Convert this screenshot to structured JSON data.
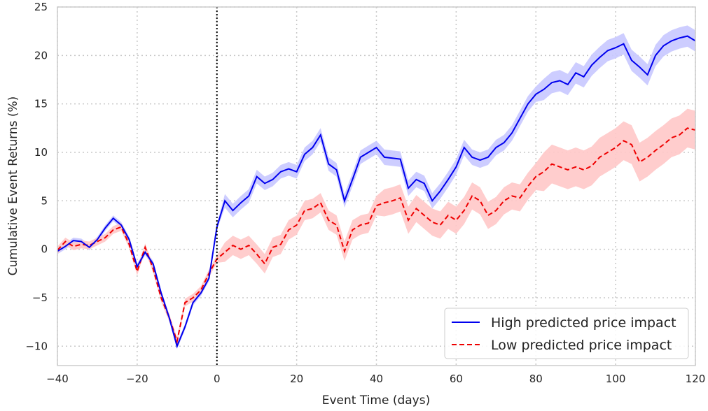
{
  "chart_data": {
    "type": "line",
    "xlabel": "Event Time (days)",
    "ylabel": "Cumulative Event Returns (%)",
    "x": [
      -40,
      -38,
      -36,
      -34,
      -32,
      -30,
      -28,
      -26,
      -24,
      -22,
      -20,
      -18,
      -16,
      -14,
      -12,
      -10,
      -8,
      -6,
      -4,
      -2,
      0,
      2,
      4,
      6,
      8,
      10,
      12,
      14,
      16,
      18,
      20,
      22,
      24,
      26,
      28,
      30,
      32,
      34,
      36,
      38,
      40,
      42,
      44,
      46,
      48,
      50,
      52,
      54,
      56,
      58,
      60,
      62,
      64,
      66,
      68,
      70,
      72,
      74,
      76,
      78,
      80,
      82,
      84,
      86,
      88,
      90,
      92,
      94,
      96,
      98,
      100,
      102,
      104,
      106,
      108,
      110,
      112,
      114,
      116,
      118,
      120
    ],
    "series": [
      {
        "name": "High predicted price impact",
        "color": "#0000ee",
        "dash": "solid",
        "band_color": "#c8c8ff",
        "values": [
          -0.2,
          0.3,
          0.9,
          0.8,
          0.2,
          1.0,
          2.2,
          3.2,
          2.5,
          1.0,
          -1.8,
          -0.3,
          -1.5,
          -4.5,
          -7.0,
          -10.0,
          -8.0,
          -5.5,
          -4.5,
          -3.0,
          2.3,
          5.0,
          4.0,
          4.8,
          5.5,
          7.5,
          6.8,
          7.2,
          8.0,
          8.3,
          8.0,
          9.8,
          10.5,
          11.8,
          8.8,
          8.2,
          5.0,
          7.2,
          9.5,
          10.0,
          10.5,
          9.5,
          9.4,
          9.3,
          6.3,
          7.2,
          6.8,
          5.0,
          6.0,
          7.2,
          8.5,
          10.5,
          9.5,
          9.2,
          9.5,
          10.5,
          11.0,
          12.0,
          13.5,
          15.0,
          16.0,
          16.5,
          17.2,
          17.4,
          17.0,
          18.2,
          17.8,
          19.0,
          19.8,
          20.5,
          20.8,
          21.2,
          19.5,
          18.8,
          18.0,
          20.0,
          21.0,
          21.5,
          21.8,
          22.0,
          21.5
        ],
        "ci": [
          0.3,
          0.3,
          0.3,
          0.3,
          0.3,
          0.3,
          0.3,
          0.3,
          0.3,
          0.3,
          0.3,
          0.3,
          0.3,
          0.3,
          0.3,
          0.3,
          0.3,
          0.3,
          0.3,
          0.3,
          0.3,
          0.7,
          0.7,
          0.7,
          0.7,
          0.7,
          0.7,
          0.7,
          0.7,
          0.7,
          0.7,
          0.7,
          0.7,
          0.7,
          0.7,
          0.7,
          0.7,
          0.7,
          0.7,
          0.7,
          0.7,
          0.8,
          0.8,
          0.8,
          0.8,
          0.8,
          0.8,
          0.8,
          0.8,
          0.8,
          0.8,
          0.8,
          0.8,
          0.8,
          0.8,
          0.8,
          0.8,
          0.8,
          0.8,
          0.8,
          0.8,
          1.1,
          1.1,
          1.1,
          1.1,
          1.1,
          1.1,
          1.1,
          1.1,
          1.1,
          1.1,
          1.1,
          1.1,
          1.1,
          1.1,
          1.1,
          1.1,
          1.1,
          1.1,
          1.1,
          1.1
        ]
      },
      {
        "name": "Low predicted price impact",
        "color": "#ee0000",
        "dash": "dashed",
        "band_color": "#ffc8c8",
        "values": [
          -0.1,
          0.8,
          0.3,
          0.5,
          0.4,
          0.8,
          1.2,
          2.0,
          2.3,
          0.5,
          -2.3,
          0.2,
          -2.0,
          -5.0,
          -7.0,
          -9.5,
          -5.5,
          -5.0,
          -4.2,
          -2.5,
          -1.0,
          -0.3,
          0.4,
          0.0,
          0.4,
          -0.5,
          -1.5,
          0.2,
          0.5,
          2.0,
          2.5,
          4.0,
          4.2,
          4.8,
          3.0,
          2.5,
          -0.2,
          2.0,
          2.5,
          2.7,
          4.5,
          4.8,
          5.0,
          5.3,
          3.0,
          4.2,
          3.5,
          2.8,
          2.5,
          3.5,
          3.0,
          4.0,
          5.5,
          5.0,
          3.5,
          4.0,
          5.0,
          5.5,
          5.3,
          6.5,
          7.5,
          8.0,
          8.8,
          8.5,
          8.2,
          8.5,
          8.2,
          8.6,
          9.5,
          10.0,
          10.5,
          11.2,
          10.8,
          9.0,
          9.5,
          10.2,
          10.8,
          11.5,
          11.8,
          12.5,
          12.3
        ],
        "ci": [
          0.4,
          0.4,
          0.4,
          0.4,
          0.4,
          0.4,
          0.4,
          0.4,
          0.4,
          0.4,
          0.4,
          0.4,
          0.4,
          0.4,
          0.4,
          0.4,
          0.4,
          0.4,
          0.4,
          0.4,
          0.4,
          1.0,
          1.0,
          1.0,
          1.0,
          1.0,
          1.0,
          1.0,
          1.0,
          1.0,
          1.0,
          1.0,
          1.0,
          1.0,
          1.0,
          1.0,
          1.0,
          1.0,
          1.0,
          1.0,
          1.0,
          1.4,
          1.4,
          1.4,
          1.4,
          1.4,
          1.4,
          1.4,
          1.4,
          1.4,
          1.4,
          1.4,
          1.4,
          1.4,
          1.4,
          1.4,
          1.4,
          1.4,
          1.4,
          1.4,
          1.4,
          2.0,
          2.0,
          2.0,
          2.0,
          2.0,
          2.0,
          2.0,
          2.0,
          2.0,
          2.0,
          2.0,
          2.0,
          2.0,
          2.0,
          2.0,
          2.0,
          2.0,
          2.0,
          2.0,
          2.0
        ]
      }
    ],
    "xlim": [
      -40,
      120
    ],
    "xticks": [
      {
        "value": -40,
        "label": "−40"
      },
      {
        "value": -20,
        "label": "−20"
      },
      0,
      20,
      40,
      60,
      80,
      100,
      120
    ],
    "ylim": [
      -12,
      25
    ],
    "yticks": [
      {
        "value": -10,
        "label": "−10"
      },
      {
        "value": -5,
        "label": "−5"
      },
      0,
      5,
      10,
      15,
      20,
      25
    ],
    "vline": 0,
    "grid": true,
    "legend": "lower right"
  }
}
